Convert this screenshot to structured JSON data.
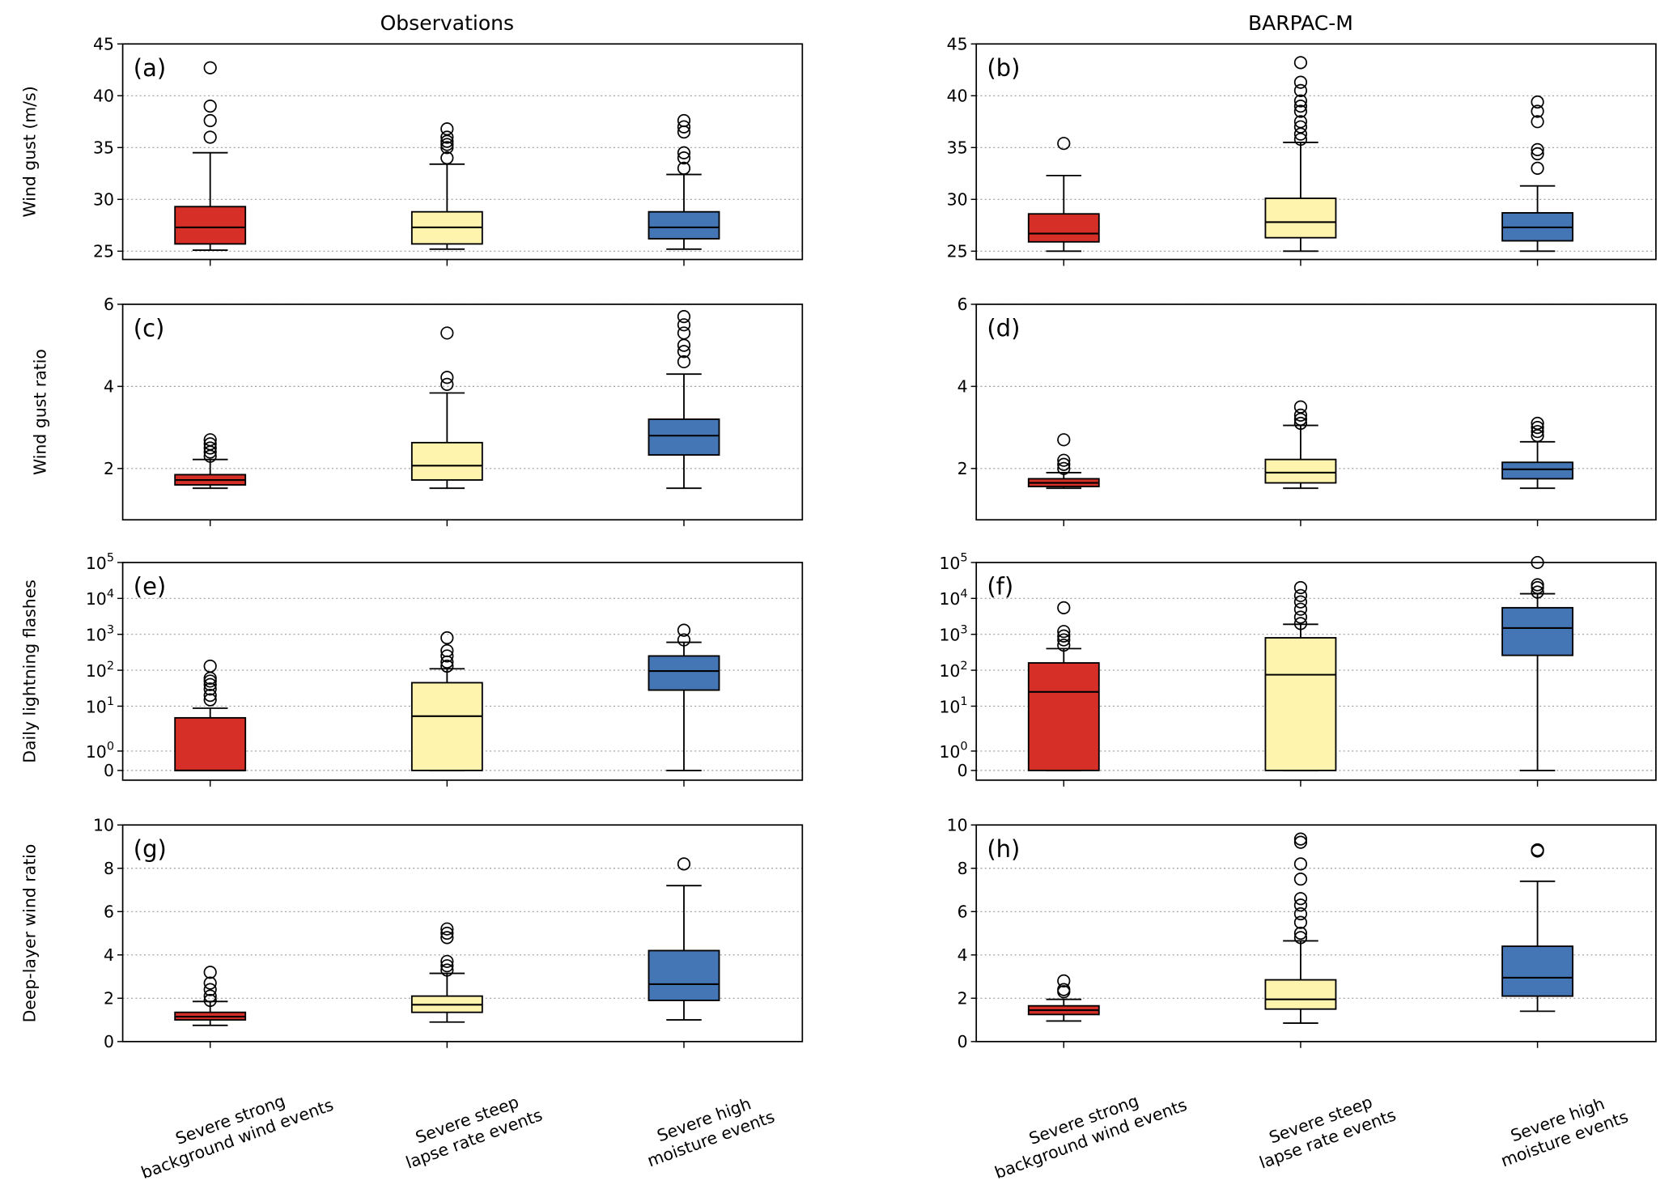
{
  "chart_data": {
    "type": "boxplot",
    "column_titles": [
      "Observations",
      "BARPAC-M"
    ],
    "categories": [
      [
        "Severe strong",
        "background wind events"
      ],
      [
        "Severe steep",
        "lapse rate events"
      ],
      [
        "Severe high",
        "moisture events"
      ]
    ],
    "colors": [
      "#d62f27",
      "#fef4ad",
      "#4475b4"
    ],
    "rows": [
      {
        "ylabel": "Wind gust (m/s)",
        "scale": "linear",
        "ylim": [
          24.2,
          45
        ],
        "ticks": [
          {
            "v": 25,
            "t": "25"
          },
          {
            "v": 30,
            "t": "30"
          },
          {
            "v": 35,
            "t": "35"
          },
          {
            "v": 40,
            "t": "40"
          },
          {
            "v": 45,
            "t": "45"
          }
        ],
        "panels": [
          {
            "label": "(a)",
            "boxes": [
              {
                "whislo": 25.1,
                "q1": 25.7,
                "med": 27.3,
                "q3": 29.3,
                "whishi": 34.5,
                "fliers": [
                  36,
                  37.6,
                  39,
                  42.7
                ]
              },
              {
                "whislo": 25.2,
                "q1": 25.7,
                "med": 27.3,
                "q3": 28.8,
                "whishi": 33.4,
                "fliers": [
                  34,
                  35,
                  35.3,
                  35.6,
                  36,
                  36.8
                ]
              },
              {
                "whislo": 25.2,
                "q1": 26.2,
                "med": 27.3,
                "q3": 28.8,
                "whishi": 32.4,
                "fliers": [
                  33,
                  34,
                  34.5,
                  36.5,
                  37,
                  37.6
                ]
              }
            ]
          },
          {
            "label": "(b)",
            "boxes": [
              {
                "whislo": 25,
                "q1": 25.9,
                "med": 26.7,
                "q3": 28.6,
                "whishi": 32.3,
                "fliers": [
                  35.4
                ]
              },
              {
                "whislo": 25,
                "q1": 26.3,
                "med": 27.8,
                "q3": 30.1,
                "whishi": 35.5,
                "fliers": [
                  35.8,
                  36.3,
                  37,
                  37.5,
                  38.5,
                  39,
                  39.5,
                  40.5,
                  41.3,
                  43.2
                ]
              },
              {
                "whislo": 25,
                "q1": 26,
                "med": 27.3,
                "q3": 28.7,
                "whishi": 31.3,
                "fliers": [
                  33,
                  34.4,
                  34.8,
                  37.5,
                  38.5,
                  39.4
                ]
              }
            ]
          }
        ]
      },
      {
        "ylabel": "Wind gust ratio",
        "scale": "linear",
        "ylim": [
          0.75,
          6
        ],
        "ticks": [
          {
            "v": 2,
            "t": "2"
          },
          {
            "v": 4,
            "t": "4"
          },
          {
            "v": 6,
            "t": "6"
          }
        ],
        "panels": [
          {
            "label": "(c)",
            "boxes": [
              {
                "whislo": 1.52,
                "q1": 1.6,
                "med": 1.72,
                "q3": 1.85,
                "whishi": 2.22,
                "fliers": [
                  2.3,
                  2.4,
                  2.5,
                  2.6,
                  2.7
                ]
              },
              {
                "whislo": 1.52,
                "q1": 1.72,
                "med": 2.07,
                "q3": 2.63,
                "whishi": 3.84,
                "fliers": [
                  4.05,
                  4.22,
                  5.3
                ]
              },
              {
                "whislo": 1.52,
                "q1": 2.33,
                "med": 2.8,
                "q3": 3.2,
                "whishi": 4.3,
                "fliers": [
                  4.6,
                  4.85,
                  5.0,
                  5.3,
                  5.5,
                  5.7
                ]
              }
            ]
          },
          {
            "label": "(d)",
            "boxes": [
              {
                "whislo": 1.52,
                "q1": 1.56,
                "med": 1.65,
                "q3": 1.75,
                "whishi": 1.9,
                "fliers": [
                  2.0,
                  2.1,
                  2.2,
                  2.7
                ]
              },
              {
                "whislo": 1.52,
                "q1": 1.65,
                "med": 1.9,
                "q3": 2.22,
                "whishi": 3.05,
                "fliers": [
                  3.1,
                  3.2,
                  3.3,
                  3.5
                ]
              },
              {
                "whislo": 1.52,
                "q1": 1.75,
                "med": 1.98,
                "q3": 2.15,
                "whishi": 2.65,
                "fliers": [
                  2.8,
                  2.9,
                  3.0,
                  3.1
                ]
              }
            ]
          }
        ]
      },
      {
        "ylabel": "Daily lightning flashes",
        "scale": "symlog",
        "ylim": [
          -0.2,
          100000
        ],
        "ticks": [
          {
            "v": 0,
            "t": "0"
          },
          {
            "v": 1,
            "t": "10",
            "e": "0"
          },
          {
            "v": 10,
            "t": "10",
            "e": "1"
          },
          {
            "v": 100,
            "t": "10",
            "e": "2"
          },
          {
            "v": 1000,
            "t": "10",
            "e": "3"
          },
          {
            "v": 10000,
            "t": "10",
            "e": "4"
          },
          {
            "v": 100000,
            "t": "10",
            "e": "5"
          }
        ],
        "panels": [
          {
            "label": "(e)",
            "boxes": [
              {
                "whislo": 0,
                "q1": 0,
                "med": 0,
                "q3": 5.5,
                "whishi": 9,
                "fliers": [
                  15,
                  20,
                  30,
                  40,
                  50,
                  60,
                  130
                ]
              },
              {
                "whislo": 0,
                "q1": 0,
                "med": 6,
                "q3": 45,
                "whishi": 110,
                "fliers": [
                  130,
                  170,
                  250,
                  350,
                  800
                ]
              },
              {
                "whislo": 0,
                "q1": 28,
                "med": 95,
                "q3": 250,
                "whishi": 600,
                "fliers": [
                  700,
                  1300
                ]
              }
            ]
          },
          {
            "label": "(f)",
            "boxes": [
              {
                "whislo": 0,
                "q1": 0,
                "med": 25,
                "q3": 160,
                "whishi": 400,
                "fliers": [
                  500,
                  700,
                  900,
                  1200,
                  5500
                ]
              },
              {
                "whislo": 0,
                "q1": 0,
                "med": 75,
                "q3": 800,
                "whishi": 1900,
                "fliers": [
                  2000,
                  3000,
                  5000,
                  8000,
                  12000,
                  20000
                ]
              },
              {
                "whislo": 0,
                "q1": 260,
                "med": 1500,
                "q3": 5500,
                "whishi": 13500,
                "fliers": [
                  15000,
                  20000,
                  24000,
                  100000
                ]
              }
            ]
          }
        ]
      },
      {
        "ylabel": "Deep-layer wind ratio",
        "scale": "linear",
        "ylim": [
          0,
          10
        ],
        "ticks": [
          {
            "v": 0,
            "t": "0"
          },
          {
            "v": 2,
            "t": "2"
          },
          {
            "v": 4,
            "t": "4"
          },
          {
            "v": 6,
            "t": "6"
          },
          {
            "v": 8,
            "t": "8"
          },
          {
            "v": 10,
            "t": "10"
          }
        ],
        "panels": [
          {
            "label": "(g)",
            "boxes": [
              {
                "whislo": 0.75,
                "q1": 1.0,
                "med": 1.15,
                "q3": 1.35,
                "whishi": 1.85,
                "fliers": [
                  1.9,
                  2.1,
                  2.4,
                  2.7,
                  3.2
                ]
              },
              {
                "whislo": 0.9,
                "q1": 1.35,
                "med": 1.7,
                "q3": 2.1,
                "whishi": 3.15,
                "fliers": [
                  3.3,
                  3.5,
                  3.7,
                  4.8,
                  5.0,
                  5.2
                ]
              },
              {
                "whislo": 1.0,
                "q1": 1.9,
                "med": 2.65,
                "q3": 4.2,
                "whishi": 7.2,
                "fliers": [
                  8.2
                ]
              }
            ]
          },
          {
            "label": "(h)",
            "boxes": [
              {
                "whislo": 0.95,
                "q1": 1.25,
                "med": 1.45,
                "q3": 1.65,
                "whishi": 1.95,
                "fliers": [
                  2.3,
                  2.4,
                  2.8
                ]
              },
              {
                "whislo": 0.85,
                "q1": 1.5,
                "med": 1.95,
                "q3": 2.85,
                "whishi": 4.65,
                "fliers": [
                  4.8,
                  5.0,
                  5.5,
                  5.9,
                  6.3,
                  6.6,
                  7.5,
                  8.2,
                  9.2,
                  9.35
                ]
              },
              {
                "whislo": 1.4,
                "q1": 2.1,
                "med": 2.95,
                "q3": 4.4,
                "whishi": 7.4,
                "fliers": [
                  8.8,
                  8.85
                ]
              }
            ]
          }
        ]
      }
    ]
  }
}
